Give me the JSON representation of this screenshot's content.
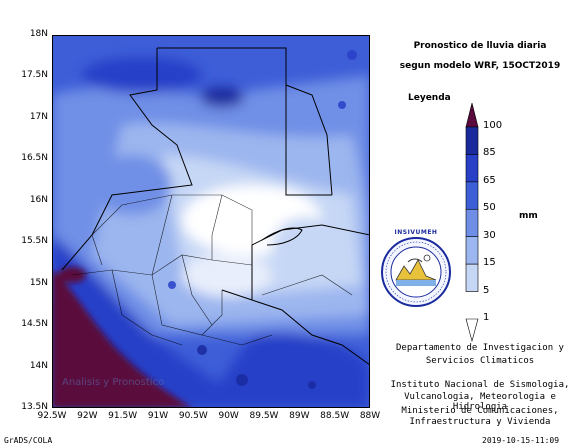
{
  "title": {
    "line1": "Pronostico de lluvia diaria",
    "line2": "segun modelo WRF,   15OCT2019"
  },
  "legend": {
    "heading": "Leyenda",
    "unit": "mm",
    "levels": [
      "100",
      "85",
      "65",
      "50",
      "30",
      "15",
      "5",
      "1"
    ],
    "colors": [
      "#5a0a3c",
      "#1a2a9e",
      "#2840c8",
      "#3e5ed8",
      "#6f8fe6",
      "#9cb6ef",
      "#c6d7f5",
      "#ffffff"
    ]
  },
  "logo": {
    "top_text": "INSIVUMEH",
    "ring_text": "INSTITUTO NACIONAL DE SISMOLOGIA VULCANOLOGIA METEOROLOGIA E HIDROLOGIA"
  },
  "info": {
    "dept": [
      "Departamento de Investigacion y",
      "Servicios Climaticos"
    ],
    "inst": [
      "Instituto Nacional de Sismologia,",
      "Vulcanologia, Meteorologia e Hidrologia"
    ],
    "min": [
      "Ministerio de Comunicaciones,",
      "Infraestructura y Vivienda"
    ]
  },
  "axes": {
    "lat_labels": [
      "18N",
      "17.5N",
      "17N",
      "16.5N",
      "16N",
      "15.5N",
      "15N",
      "14.5N",
      "14N",
      "13.5N"
    ],
    "lon_labels": [
      "92.5W",
      "92W",
      "91.5W",
      "91W",
      "90.5W",
      "90W",
      "89.5W",
      "89W",
      "88.5W",
      "88W"
    ]
  },
  "watermark": "Analisis y Pronostico",
  "footer": {
    "left": "GrADS/COLA",
    "right": "2019-10-15-11:09"
  },
  "colors": {
    "sea": "#3a55cf",
    "heavy": "#5a0a3c",
    "dry": "#ffffff"
  }
}
